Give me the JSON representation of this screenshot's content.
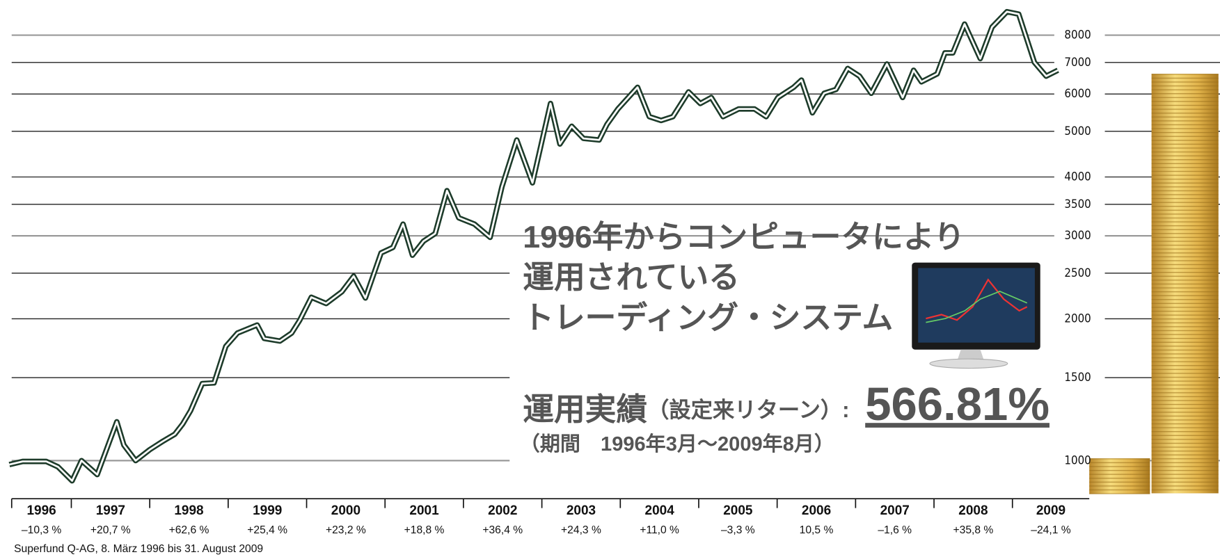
{
  "chart_data": {
    "type": "line",
    "log_y": true,
    "grid": true,
    "ylim": [
      830,
      9500
    ],
    "yticks": [
      1000,
      1500,
      2000,
      2500,
      3000,
      3500,
      4000,
      5000,
      6000,
      7000,
      8000
    ],
    "xlim": [
      1996.17,
      2009.98
    ],
    "x": [
      1996.21,
      1996.38,
      1996.68,
      1996.83,
      1997.01,
      1997.13,
      1997.33,
      1997.58,
      1997.67,
      1997.82,
      1998.0,
      1998.17,
      1998.32,
      1998.42,
      1998.52,
      1998.67,
      1998.82,
      1998.97,
      1999.12,
      1999.37,
      1999.46,
      1999.66,
      1999.81,
      1999.91,
      2000.06,
      2000.25,
      2000.45,
      2000.6,
      2000.75,
      2000.95,
      2001.1,
      2001.23,
      2001.35,
      2001.49,
      2001.64,
      2001.79,
      2001.94,
      2002.14,
      2002.34,
      2002.49,
      2002.68,
      2002.88,
      2003.11,
      2003.23,
      2003.38,
      2003.53,
      2003.73,
      2003.83,
      2003.97,
      2004.22,
      2004.37,
      2004.52,
      2004.67,
      2004.87,
      2005.02,
      2005.16,
      2005.31,
      2005.51,
      2005.71,
      2005.86,
      2006.01,
      2006.21,
      2006.31,
      2006.45,
      2006.6,
      2006.75,
      2006.9,
      2007.05,
      2007.2,
      2007.4,
      2007.6,
      2007.74,
      2007.84,
      2008.04,
      2008.14,
      2008.24,
      2008.39,
      2008.59,
      2008.74,
      2008.93,
      2009.08,
      2009.28,
      2009.43,
      2009.58
    ],
    "series": [
      {
        "color": "#1d3b2a",
        "values": [
          981,
          996,
          996,
          970,
          906,
          1000,
          934,
          1209,
          1079,
          1000,
          1055,
          1100,
          1138,
          1196,
          1276,
          1457,
          1462,
          1748,
          1866,
          1940,
          1817,
          1794,
          1866,
          1983,
          2222,
          2155,
          2283,
          2463,
          2214,
          2760,
          2835,
          3177,
          2729,
          2922,
          3035,
          3741,
          3276,
          3177,
          2978,
          3810,
          4793,
          3887,
          5729,
          4700,
          5126,
          4830,
          4793,
          5173,
          5578,
          6201,
          5372,
          5272,
          5372,
          6062,
          5729,
          5899,
          5372,
          5578,
          5578,
          5372,
          5899,
          6201,
          6424,
          5474,
          6022,
          6135,
          6798,
          6549,
          6022,
          6948,
          5899,
          6739,
          6368,
          6621,
          7336,
          7336,
          8445,
          7134,
          8321,
          8972,
          8866,
          7005,
          6549,
          6739
        ]
      }
    ],
    "years": [
      1996,
      1997,
      1998,
      1999,
      2000,
      2001,
      2002,
      2003,
      2004,
      2005,
      2006,
      2007,
      2008,
      2009
    ],
    "annual_returns": [
      "–10,3 %",
      "+20,7 %",
      "+62,6 %",
      "+25,4 %",
      "+23,2 %",
      "+18,8 %",
      "+36,4 %",
      "+24,3 %",
      "+11,0 %",
      "–3,3 %",
      "10,5 %",
      "–1,6 %",
      "+35,8 %",
      "–24,1 %"
    ],
    "source": "Superfund Q-AG, 8. März 1996 bis 31. August 2009",
    "headline": [
      "1996年からコンピュータにより",
      "運用されている",
      "トレーディング・システム"
    ],
    "performance_label": "運用実績",
    "performance_sublabel": "（設定来リターン）:",
    "performance_value": "566.81%",
    "period": "（期間　1996年3月～2009年8月）"
  }
}
